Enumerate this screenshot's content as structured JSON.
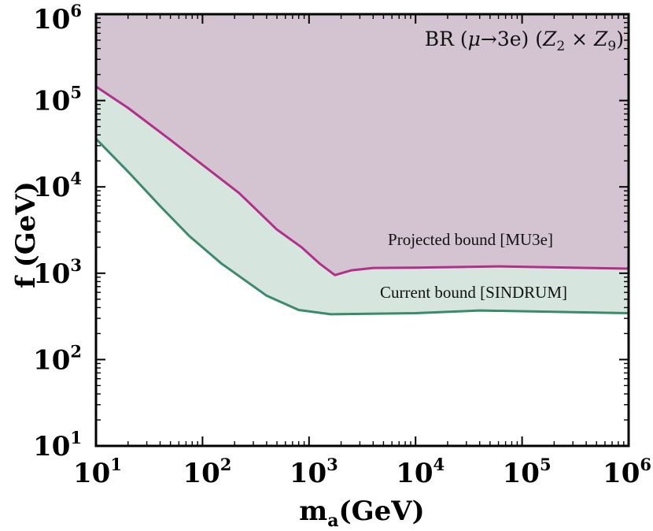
{
  "chart_data": {
    "type": "area",
    "title": "BR (μ→3e) (Z2 × Z9)",
    "xlabel": "ma(GeV)",
    "ylabel": "f (GeV)",
    "x_scale": "log",
    "y_scale": "log",
    "xlim": [
      10,
      1000000
    ],
    "ylim": [
      10,
      1000000
    ],
    "x_ticks": [
      10,
      100,
      1000,
      10000,
      100000,
      1000000
    ],
    "y_ticks": [
      10,
      100,
      1000,
      10000,
      100000,
      1000000
    ],
    "x_tick_labels": [
      {
        "base": "10",
        "exp": "1"
      },
      {
        "base": "10",
        "exp": "2"
      },
      {
        "base": "10",
        "exp": "3"
      },
      {
        "base": "10",
        "exp": "4"
      },
      {
        "base": "10",
        "exp": "5"
      },
      {
        "base": "10",
        "exp": "6"
      }
    ],
    "y_tick_labels": [
      {
        "base": "10",
        "exp": "1"
      },
      {
        "base": "10",
        "exp": "2"
      },
      {
        "base": "10",
        "exp": "3"
      },
      {
        "base": "10",
        "exp": "4"
      },
      {
        "base": "10",
        "exp": "5"
      },
      {
        "base": "10",
        "exp": "6"
      }
    ],
    "grid": false,
    "series": [
      {
        "name": "Projected bound [MU3e]",
        "color": "#b2308a",
        "fill": "#d4c4d2",
        "x": [
          10,
          20,
          50,
          100,
          220,
          500,
          850,
          1250,
          1750,
          2500,
          4000,
          10000,
          60000,
          1000000
        ],
        "y": [
          145000,
          82000,
          35000,
          18000,
          8500,
          3200,
          2000,
          1300,
          950,
          1080,
          1150,
          1160,
          1200,
          1130
        ]
      },
      {
        "name": "Current bound [SINDRUM]",
        "color": "#3d8a6a",
        "fill": "#d6e6df",
        "x": [
          10,
          20,
          40,
          75,
          150,
          400,
          800,
          1600,
          10000,
          40000,
          1000000
        ],
        "y": [
          36000,
          15000,
          6000,
          2700,
          1300,
          550,
          375,
          335,
          345,
          370,
          345
        ]
      }
    ],
    "annotations": [
      "Projected bound [MU3e]",
      "Current bound [SINDRUM]"
    ]
  }
}
